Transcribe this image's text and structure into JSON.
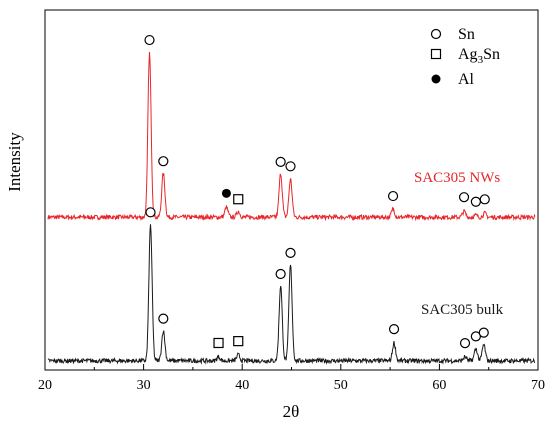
{
  "chart_data": {
    "type": "line",
    "title": "",
    "xlabel": "2θ",
    "ylabel": "Intensity",
    "xlim": [
      20,
      70
    ],
    "xticks": [
      20,
      30,
      40,
      50,
      60,
      70
    ],
    "y_tick_labels": false,
    "colors": {
      "nws": "#e8262a",
      "bulk": "#1a1a1a",
      "axis": "#000000"
    },
    "legend": {
      "placement": "top-right",
      "items": [
        {
          "marker": "open-circle",
          "label": "Sn"
        },
        {
          "marker": "open-square",
          "label": "Ag",
          "sub": "3",
          "suffix": "Sn"
        },
        {
          "marker": "filled-circle",
          "label": "Al"
        }
      ]
    },
    "series": [
      {
        "name": "SAC305 NWs",
        "color": "#e8262a",
        "peaks": [
          {
            "x": 30.6,
            "h": 0.82,
            "marker": "open-circle"
          },
          {
            "x": 32.0,
            "h": 0.22,
            "marker": "open-circle"
          },
          {
            "x": 38.4,
            "h": 0.05,
            "marker": "filled-circle"
          },
          {
            "x": 39.6,
            "h": 0.03,
            "marker": "open-square"
          },
          {
            "x": 43.9,
            "h": 0.22,
            "marker": "open-circle"
          },
          {
            "x": 44.9,
            "h": 0.19,
            "marker": "open-circle"
          },
          {
            "x": 55.3,
            "h": 0.04,
            "marker": "open-circle"
          },
          {
            "x": 62.5,
            "h": 0.03,
            "marker": "open-circle"
          },
          {
            "x": 63.7,
            "h": 0.01,
            "marker": "open-circle"
          },
          {
            "x": 64.6,
            "h": 0.02,
            "marker": "open-circle"
          }
        ]
      },
      {
        "name": "SAC305 bulk",
        "color": "#1a1a1a",
        "peaks": [
          {
            "x": 30.7,
            "h": 0.68,
            "marker": "open-circle"
          },
          {
            "x": 32.0,
            "h": 0.15,
            "marker": "open-circle"
          },
          {
            "x": 37.6,
            "h": 0.02,
            "marker": "open-square"
          },
          {
            "x": 39.6,
            "h": 0.03,
            "marker": "open-square"
          },
          {
            "x": 43.9,
            "h": 0.38,
            "marker": "open-circle"
          },
          {
            "x": 44.9,
            "h": 0.48,
            "marker": "open-circle"
          },
          {
            "x": 55.4,
            "h": 0.09,
            "marker": "open-circle"
          },
          {
            "x": 62.6,
            "h": 0.02,
            "marker": "open-circle"
          },
          {
            "x": 63.7,
            "h": 0.06,
            "marker": "open-circle"
          },
          {
            "x": 64.5,
            "h": 0.08,
            "marker": "open-circle"
          }
        ]
      }
    ]
  }
}
